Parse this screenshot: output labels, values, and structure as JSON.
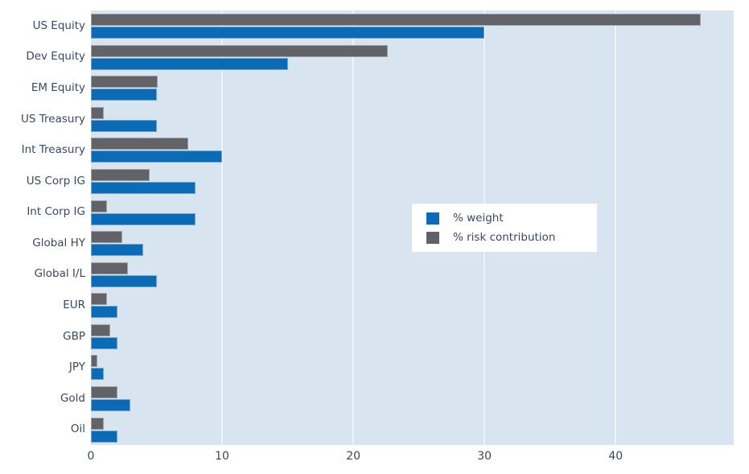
{
  "chart_data": {
    "type": "bar",
    "orientation": "horizontal",
    "title": "",
    "xlabel": "",
    "ylabel": "",
    "categories": [
      "US Equity",
      "Dev Equity",
      "EM Equity",
      "US Treasury",
      "Int Treasury",
      "US Corp IG",
      "Int Corp IG",
      "Global HY",
      "Global I/L",
      "EUR",
      "GBP",
      "JPY",
      "Gold",
      "Oil"
    ],
    "series": [
      {
        "name": "% weight",
        "color": "#0d6bb5",
        "values": [
          30,
          15,
          5,
          5,
          10,
          8,
          8,
          4,
          5,
          2,
          2,
          1,
          3,
          2
        ]
      },
      {
        "name": "% risk contribution",
        "color": "#616368",
        "values": [
          46.5,
          22.6,
          5.1,
          1.0,
          7.4,
          4.5,
          1.2,
          2.4,
          2.8,
          1.2,
          1.5,
          0.5,
          2.0,
          1.0
        ]
      }
    ],
    "x_ticks": [
      0,
      10,
      20,
      30,
      40
    ],
    "xlim": [
      0,
      49
    ],
    "grid": true,
    "legend_position": "center-right",
    "colors": {
      "plot_background": "#d8e5f1",
      "figure_background": "#ffffff",
      "gridline": "#eef4fb",
      "text": "#394862"
    }
  },
  "legend": {
    "items": [
      {
        "label": "% weight",
        "color": "#0d6bb5"
      },
      {
        "label": "% risk contribution",
        "color": "#616368"
      }
    ]
  }
}
